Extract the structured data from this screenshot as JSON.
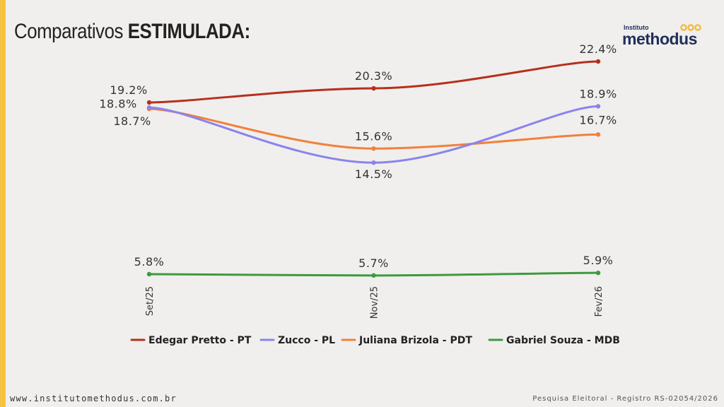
{
  "header": {
    "title_prefix": "Comparativos",
    "title_bold": "ESTIMULADA:"
  },
  "logo": {
    "small_text": "Instituto",
    "main_text": "methodus",
    "accent_color": "#f5b731",
    "brand_color": "#1f2f5a"
  },
  "chart_data": {
    "type": "line",
    "categories": [
      "Set/25",
      "Nov/25",
      "Fev/26"
    ],
    "series": [
      {
        "name": "Edegar Pretto - PT",
        "values": [
          19.2,
          20.3,
          22.4
        ],
        "labels": [
          "19.2%",
          "20.3%",
          "22.4%"
        ],
        "color": "#b5301e"
      },
      {
        "name": "Zucco - PL",
        "values": [
          18.8,
          14.5,
          18.9
        ],
        "labels": [
          "18.8%",
          "14.5%",
          "18.9%"
        ],
        "color": "#8a83ef"
      },
      {
        "name": "Juliana Brizola - PDT",
        "values": [
          18.7,
          15.6,
          16.7
        ],
        "labels": [
          "18.7%",
          "15.6%",
          "16.7%"
        ],
        "color": "#f2803c"
      },
      {
        "name": "Gabriel Souza - MDB",
        "values": [
          5.8,
          5.7,
          5.9
        ],
        "labels": [
          "5.8%",
          "5.7%",
          "5.9%"
        ],
        "color": "#3e9a3e"
      }
    ],
    "xlabel": "",
    "ylabel": "",
    "grid": false,
    "legend_position": "bottom"
  },
  "footer": {
    "website": "www.institutomethodus.com.br",
    "registration": "Pesquisa Eleitoral - Registro RS-02054/2026"
  }
}
